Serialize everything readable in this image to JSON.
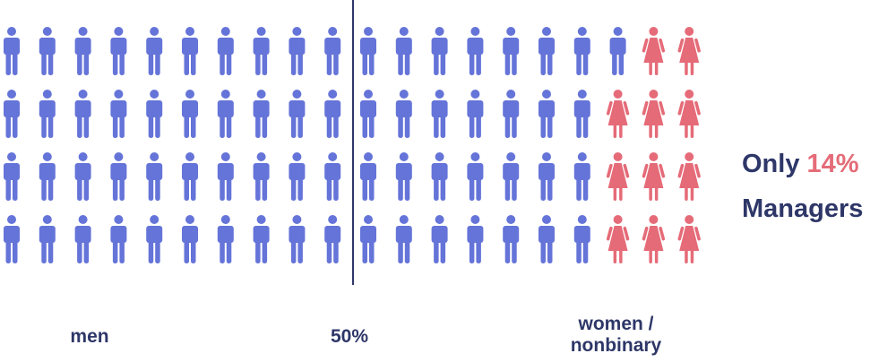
{
  "chart_data": {
    "type": "pictogram",
    "rows": 4,
    "columns": 20,
    "total_icons": 80,
    "series": [
      {
        "name": "men",
        "count": 69,
        "color": "#6574d8",
        "icon": "male-person-icon"
      },
      {
        "name": "women / nonbinary",
        "count": 11,
        "color": "#e56b78",
        "icon": "female-person-icon"
      }
    ],
    "red_icons_per_row_from_right": [
      2,
      3,
      3,
      3
    ],
    "divider_label": "50%",
    "labels": {
      "men": "men",
      "divider": "50%",
      "women_line1": "women /",
      "women_line2": "nonbinary"
    },
    "headline": {
      "prefix": "Only ",
      "highlight": "14%",
      "line2": "Managers"
    }
  },
  "colors": {
    "men": "#6574d8",
    "women": "#e56b78",
    "text_dark": "#2e3768",
    "highlight": "#e56b78",
    "divider": "#2e3768"
  }
}
